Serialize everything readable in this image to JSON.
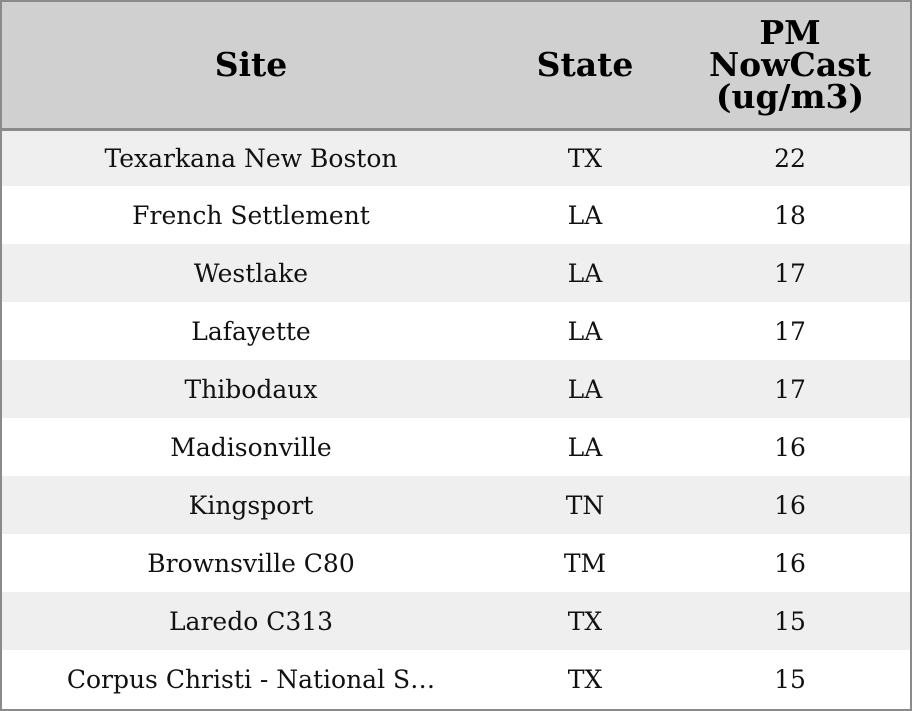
{
  "chart_data": {
    "type": "table",
    "columns": [
      "Site",
      "State",
      "PM\nNowCast\n(ug/m3)"
    ],
    "rows": [
      {
        "site": "Texarkana New Boston",
        "state": "TX",
        "pm": 22
      },
      {
        "site": "French Settlement",
        "state": "LA",
        "pm": 18
      },
      {
        "site": "Westlake",
        "state": "LA",
        "pm": 17
      },
      {
        "site": "Lafayette",
        "state": "LA",
        "pm": 17
      },
      {
        "site": "Thibodaux",
        "state": "LA",
        "pm": 17
      },
      {
        "site": "Madisonville",
        "state": "LA",
        "pm": 16
      },
      {
        "site": "Kingsport",
        "state": "TN",
        "pm": 16
      },
      {
        "site": "Brownsville C80",
        "state": "TM",
        "pm": 16
      },
      {
        "site": "Laredo C313",
        "state": "TX",
        "pm": 15
      },
      {
        "site": "Corpus Christi - National S…",
        "state": "TX",
        "pm": 15
      }
    ]
  },
  "colors": {
    "header_bg": "#d0d0d0",
    "row_alt_bg": "#efefef",
    "row_bg": "#ffffff",
    "border": "#8a8a8a"
  }
}
